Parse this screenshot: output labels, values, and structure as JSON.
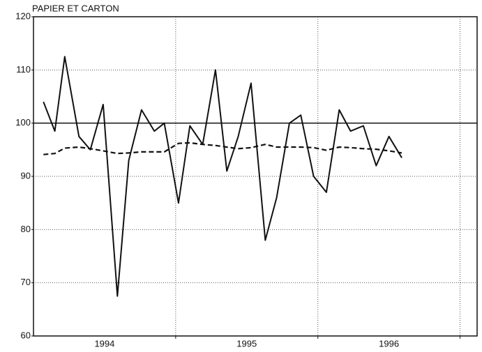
{
  "chart_data": {
    "type": "line",
    "title": "PAPIER ET CARTON",
    "x": [
      1994.07,
      1994.15,
      1994.22,
      1994.32,
      1994.4,
      1994.49,
      1994.59,
      1994.67,
      1994.76,
      1994.85,
      1994.92,
      1995.02,
      1995.1,
      1995.19,
      1995.28,
      1995.36,
      1995.44,
      1995.53,
      1995.63,
      1995.71,
      1995.8,
      1995.88,
      1995.97,
      1996.06,
      1996.15,
      1996.23,
      1996.32,
      1996.41,
      1996.5,
      1996.59
    ],
    "series": [
      {
        "color": "#111111",
        "dash": false,
        "values": [
          104,
          98.5,
          112.5,
          97.5,
          95,
          103.5,
          67.5,
          93,
          102.5,
          98.5,
          100,
          85,
          99.5,
          96,
          110,
          91,
          97.5,
          107.5,
          78,
          86,
          100,
          101.5,
          90,
          87,
          102.5,
          98.5,
          99.5,
          92,
          97.5,
          93.5
        ]
      },
      {
        "color": "#111111",
        "dash": true,
        "values": [
          94.1,
          94.3,
          95.3,
          95.5,
          95.2,
          94.8,
          94.3,
          94.4,
          94.6,
          94.6,
          94.6,
          96.2,
          96.3,
          96.0,
          95.8,
          95.5,
          95.2,
          95.4,
          96.0,
          95.5,
          95.5,
          95.5,
          95.4,
          94.9,
          95.5,
          95.4,
          95.2,
          95.1,
          94.8,
          94.4
        ]
      }
    ],
    "reference_line": 100,
    "xlim": [
      1994,
      1997.12
    ],
    "xticks": [
      {
        "value": 1994.5,
        "label": "1994"
      },
      {
        "value": 1995.5,
        "label": "1995"
      },
      {
        "value": 1996.5,
        "label": "1996"
      }
    ],
    "xgrid": [
      1995,
      1996,
      1997
    ],
    "ylim": [
      60,
      120
    ],
    "yticks": [
      60,
      70,
      80,
      90,
      100,
      110,
      120
    ],
    "grid": true
  }
}
